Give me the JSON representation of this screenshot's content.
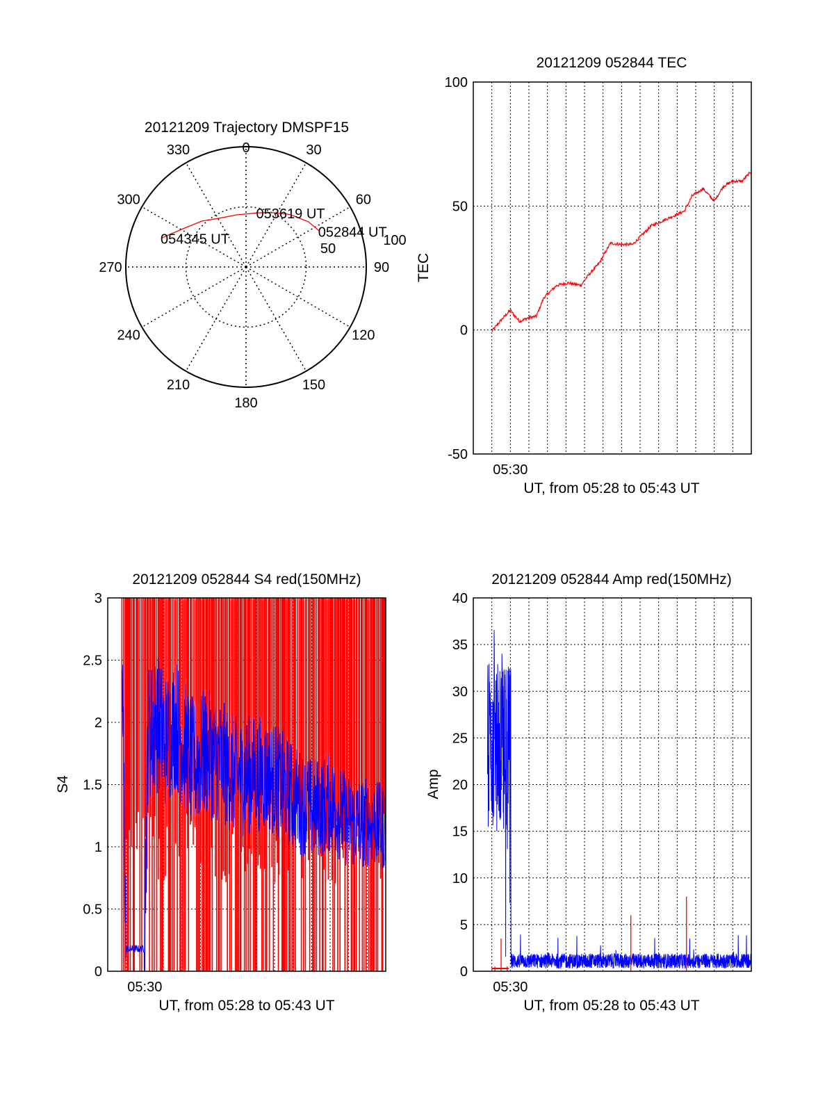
{
  "colors": {
    "red": "#ff0000",
    "blue": "#0000ff",
    "axis": "#000000",
    "grid": "#000000"
  },
  "chart_data": [
    {
      "id": "trajectory",
      "type": "polar",
      "title": "20121209 Trajectory DMSPF15",
      "azimuth_labels": [
        "0",
        "30",
        "60",
        "90",
        "120",
        "150",
        "180",
        "210",
        "240",
        "270",
        "300",
        "330"
      ],
      "radial_labels": [
        "50",
        "100"
      ],
      "zenith_range": [
        0,
        100
      ],
      "grid": true,
      "series": [
        {
          "color": "#ff0000",
          "points": [
            [
              64,
              68
            ],
            [
              54,
              64
            ],
            [
              40,
              57
            ],
            [
              25,
              50
            ],
            [
              12,
              46
            ],
            [
              -10,
              44
            ],
            [
              -28,
              46
            ],
            [
              -44,
              53
            ],
            [
              -57,
              60
            ],
            [
              -66,
              68
            ],
            [
              -71,
              74
            ]
          ]
        }
      ],
      "annotations": [
        {
          "text": "052844 UT",
          "az": 64,
          "zen": 68
        },
        {
          "text": "053619 UT",
          "az": 12,
          "zen": 46
        },
        {
          "text": "054345 UT",
          "az": -71,
          "zen": 74
        }
      ]
    },
    {
      "id": "tec",
      "type": "line",
      "title": "20121209 052844 TEC",
      "xlabel": "UT, from 05:28 to 05:43 UT",
      "ylabel": "TEC",
      "xlim": [
        "05:28",
        "05:43"
      ],
      "ylim": [
        -50,
        100
      ],
      "yticks": [
        "-50",
        "0",
        "50",
        "100"
      ],
      "xticks": [
        "05:30"
      ],
      "grid": true,
      "series": [
        {
          "color": "#ff0000",
          "x": [
            "05:29:00",
            "05:29:30",
            "05:30:00",
            "05:30:12",
            "05:30:30",
            "05:31:00",
            "05:31:24",
            "05:31:48",
            "05:32:30",
            "05:33:06",
            "05:33:48",
            "05:34:12",
            "05:34:48",
            "05:35:24",
            "05:36:00",
            "05:36:36",
            "05:37:12",
            "05:37:36",
            "05:38:12",
            "05:38:48",
            "05:39:24",
            "05:39:48",
            "05:40:24",
            "05:41:00",
            "05:41:30",
            "05:42:00",
            "05:42:30",
            "05:43:00"
          ],
          "y": [
            -0.5,
            4,
            8,
            6,
            3.5,
            5,
            5.5,
            13,
            18,
            19,
            18,
            22,
            27,
            35,
            34.5,
            34.5,
            39,
            42,
            44,
            46,
            48,
            54,
            57,
            52,
            58,
            60,
            60,
            64
          ]
        }
      ]
    },
    {
      "id": "s4",
      "type": "line",
      "title": "20121209 052844 S4 red(150MHz)",
      "xlabel": "UT, from 05:28 to 05:43 UT",
      "ylabel": "S4",
      "xlim": [
        "05:28",
        "05:43"
      ],
      "ylim": [
        0,
        3
      ],
      "yticks": [
        "0",
        "0.5",
        "1",
        "1.5",
        "2",
        "2.5",
        "3"
      ],
      "xticks": [
        "05:30"
      ],
      "grid": true,
      "series": [
        {
          "color": "#ff0000",
          "style": "saturated-spikes",
          "x_start": "05:28:46",
          "x_end": "05:43:00",
          "baseline": 0,
          "max": 3
        },
        {
          "color": "#0000ff",
          "style": "noisy",
          "x": [
            "05:28:46",
            "05:29:00",
            "05:29:30",
            "05:29:58",
            "05:30:10",
            "05:30:40",
            "05:31:10",
            "05:31:40",
            "05:32:10",
            "05:32:40",
            "05:33:10",
            "05:34:00",
            "05:35:00",
            "05:36:00",
            "05:37:00",
            "05:38:00",
            "05:39:00",
            "05:40:00",
            "05:41:00",
            "05:42:00",
            "05:43:00"
          ],
          "y": [
            2.5,
            0.18,
            0.18,
            0.18,
            1.9,
            2.0,
            1.85,
            2.0,
            1.8,
            1.65,
            1.75,
            1.7,
            1.55,
            1.6,
            1.55,
            1.4,
            1.3,
            1.35,
            1.2,
            1.2,
            1.15
          ]
        }
      ]
    },
    {
      "id": "amp",
      "type": "line",
      "title": "20121209 052844 Amp red(150MHz)",
      "xlabel": "UT, from 05:28 to 05:43 UT",
      "ylabel": "Amp",
      "xlim": [
        "05:28",
        "05:43"
      ],
      "ylim": [
        0,
        40
      ],
      "yticks": [
        "0",
        "5",
        "10",
        "15",
        "20",
        "25",
        "30",
        "35",
        "40"
      ],
      "xticks": [
        "05:30"
      ],
      "grid": true,
      "series": [
        {
          "color": "#0000ff",
          "style": "noisy",
          "x": [
            "05:28:46",
            "05:29:00",
            "05:29:30",
            "05:30:00",
            "05:30:02",
            "05:31:00",
            "05:34:00",
            "05:38:00",
            "05:43:00"
          ],
          "y": [
            22,
            24,
            23,
            22,
            1.0,
            1.0,
            1.0,
            1.0,
            1.0
          ]
        },
        {
          "color": "#ff0000",
          "style": "spikes",
          "x": [
            "05:29:00",
            "05:29:10",
            "05:29:30",
            "05:29:50",
            "05:36:30",
            "05:39:30"
          ],
          "y": [
            0.3,
            0.5,
            3.5,
            0.5,
            6.0,
            8.0
          ]
        }
      ]
    }
  ]
}
